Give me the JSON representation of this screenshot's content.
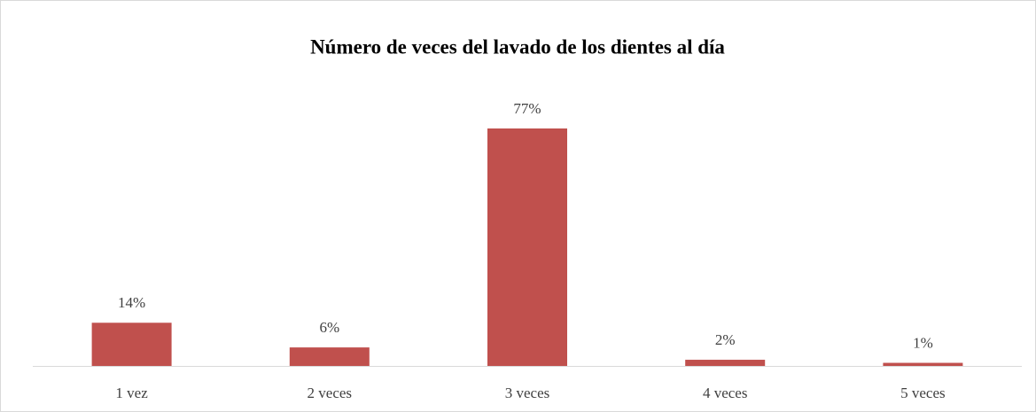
{
  "chart_data": {
    "type": "bar",
    "title": "Número de veces del lavado de los dientes al día",
    "categories": [
      "1 vez",
      "2 veces",
      "3 veces",
      "4 veces",
      "5 veces"
    ],
    "values": [
      14,
      6,
      77,
      2,
      1
    ],
    "value_labels": [
      "14%",
      "6%",
      "77%",
      "2%",
      "1%"
    ],
    "color": "#c0504d"
  }
}
